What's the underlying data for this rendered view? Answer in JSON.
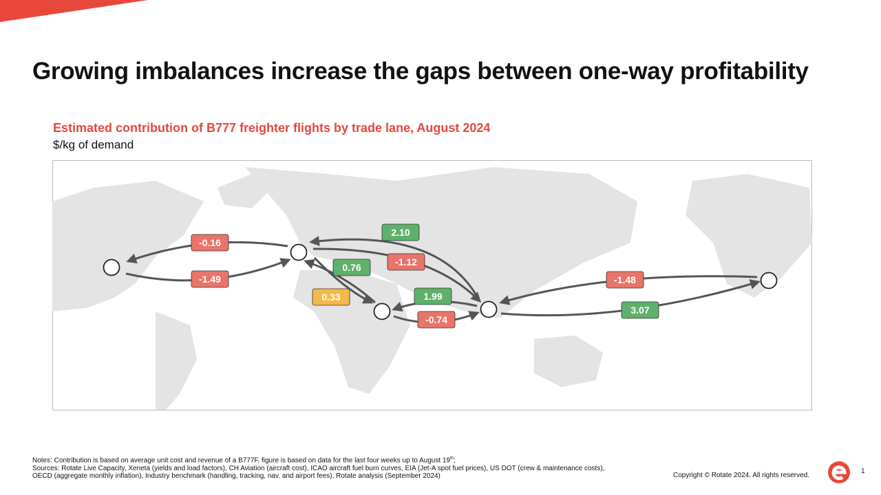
{
  "header": {
    "title": "Growing imbalances increase the gaps between one-way profitability"
  },
  "figure": {
    "title": "Estimated contribution of B777 freighter flights by trade lane, August 2024",
    "subtitle": "$/kg of demand",
    "lanes": [
      {
        "label": "-0.16",
        "color": "#e8746a"
      },
      {
        "label": "-1.49",
        "color": "#e8746a"
      },
      {
        "label": "2.10",
        "color": "#5fb06a"
      },
      {
        "label": "-1.12",
        "color": "#e8746a"
      },
      {
        "label": "0.76",
        "color": "#5fb06a"
      },
      {
        "label": "0.33",
        "color": "#f5b84a"
      },
      {
        "label": "1.99",
        "color": "#5fb06a"
      },
      {
        "label": "-0.74",
        "color": "#e8746a"
      },
      {
        "label": "-1.48",
        "color": "#e8746a"
      },
      {
        "label": "3.07",
        "color": "#5fb06a"
      }
    ]
  },
  "footer": {
    "notes": "Notes: Contribution is based on average unit cost and revenue of a B777F, figure is based on data for the last four weeks up to August 19",
    "notes_sup": "th",
    "notes_end": ";",
    "sources": "Sources: Rotate Live Capacity, Xeneta (yields and load factors), CH Aviation (aircraft cost), ICAO aircraft fuel burn curves, EIA (Jet-A spot fuel prices), US DOT (crew & maintenance costs), OECD (aggregate monthly inflation), Industry benchmark (handling, tracking, nav. and airport fees), Rotate analysis (September 2024)",
    "copyright": "Copyright © Rotate 2024. All rights reserved.",
    "page": "1"
  }
}
